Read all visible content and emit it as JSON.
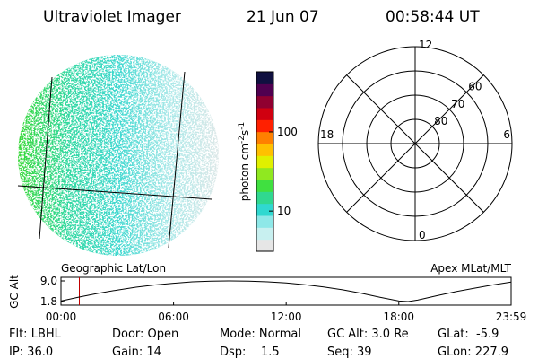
{
  "header": {
    "title": "Ultraviolet Imager",
    "date": "21 Jun 07",
    "time": "00:58:44 UT"
  },
  "colorbar": {
    "label": "photon cm",
    "exp1": "-2",
    "unit2": "s",
    "exp2": "-1",
    "log": true,
    "lim": [
      3.1,
      575
    ],
    "ticks": [
      10,
      100
    ],
    "colors": [
      "#e6e6e6",
      "#c8f0f0",
      "#8ee8e8",
      "#30d8d0",
      "#30d890",
      "#40e040",
      "#90e820",
      "#e0f000",
      "#ffc000",
      "#ff8000",
      "#ff2000",
      "#d00010",
      "#900030",
      "#500050",
      "#101040"
    ]
  },
  "polar": {
    "lim": [
      90,
      50
    ],
    "rings": [
      60,
      70,
      80
    ],
    "outer": 50,
    "mlt": [
      12,
      18,
      6,
      0
    ]
  },
  "orbit": {
    "ylabel": "GC Alt",
    "left_label": "Geographic Lat/Lon",
    "right_label": "Apex MLat/MLT",
    "xlim": [
      0,
      23.983
    ],
    "ylim": [
      1.8,
      9.0
    ],
    "yticks": [
      {
        "value": 9.0,
        "label": "9.0"
      },
      {
        "value": 1.8,
        "label": "1.8"
      }
    ],
    "xticks": [
      {
        "value": 0,
        "label": "00:00"
      },
      {
        "value": 6,
        "label": "06:00"
      },
      {
        "value": 12,
        "label": "12:00"
      },
      {
        "value": 18,
        "label": "18:00"
      },
      {
        "value": 23.983,
        "label": "23:59"
      }
    ],
    "current": 0.979,
    "hours": [
      0,
      1,
      2,
      3,
      4,
      5,
      6,
      7,
      8,
      9,
      10,
      11,
      12,
      13,
      14,
      15,
      16,
      17,
      18,
      18.5,
      19,
      20,
      21,
      22,
      23,
      23.983
    ],
    "altitude": [
      2.0,
      3.4,
      4.7,
      5.8,
      6.8,
      7.6,
      8.2,
      8.7,
      8.95,
      9.0,
      8.95,
      8.7,
      8.3,
      7.7,
      6.9,
      5.9,
      4.7,
      3.3,
      2.0,
      1.8,
      2.3,
      3.8,
      5.2,
      6.4,
      7.6,
      8.6
    ]
  },
  "info": [
    [
      "Flt: LBHL",
      "Door: Open",
      "Mode: Normal",
      "GC Alt: 3.0 Re",
      "GLat:  -5.9"
    ],
    [
      "IP: 36.0",
      "Gain: 14",
      "Dsp:    1.5",
      "Seq: 39",
      "GLon: 227.9"
    ]
  ]
}
